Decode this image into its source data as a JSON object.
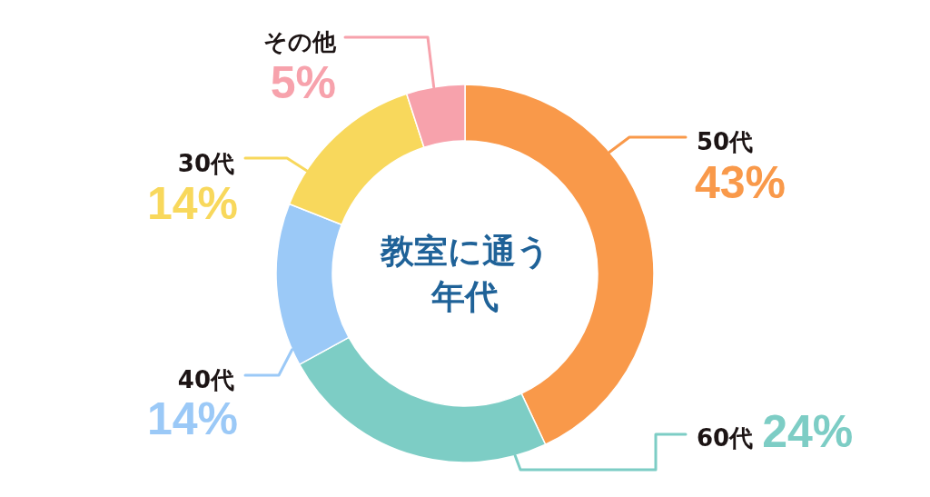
{
  "chart_data": {
    "type": "donut",
    "title": "教室に通う年代",
    "categories": [
      "50代",
      "60代",
      "40代",
      "30代",
      "その他"
    ],
    "values": [
      43,
      24,
      14,
      14,
      5
    ],
    "colors": [
      "#f9994a",
      "#7dcdc5",
      "#9bc9f7",
      "#f8d85c",
      "#f7a2ac"
    ],
    "value_labels": [
      "43%",
      "24%",
      "14%",
      "14%",
      "5%"
    ]
  }
}
